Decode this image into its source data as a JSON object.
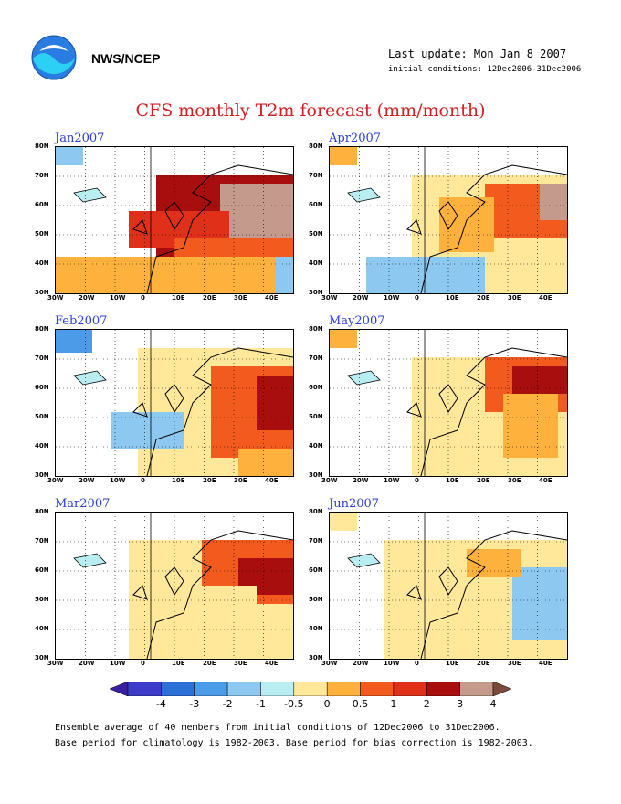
{
  "header": {
    "org": "NWS/NCEP",
    "last_update": "Last update: Mon Jan 8 2007",
    "initial_conditions": "initial conditions: 12Dec2006-31Dec2006"
  },
  "title": "CFS monthly T2m forecast (mm/month)",
  "panels": [
    {
      "month": "Jan2007"
    },
    {
      "month": "Apr2007"
    },
    {
      "month": "Feb2007"
    },
    {
      "month": "May2007"
    },
    {
      "month": "Mar2007"
    },
    {
      "month": "Jun2007"
    }
  ],
  "lat_labels": [
    "80N",
    "70N",
    "60N",
    "50N",
    "40N",
    "30N"
  ],
  "lon_labels": [
    "30W",
    "20W",
    "10W",
    "0",
    "10E",
    "20E",
    "30E",
    "40E"
  ],
  "colorbar": {
    "labels": [
      "-4",
      "-3",
      "-2",
      "-1",
      "-0.5",
      "0",
      "0.5",
      "1",
      "2",
      "3",
      "4"
    ],
    "colors": [
      "#3a1f9e",
      "#3c3cc8",
      "#2c6fd6",
      "#4b9be8",
      "#8dc8f0",
      "#b8eef2",
      "#ffe89a",
      "#ffb13d",
      "#f25a1e",
      "#e0301a",
      "#a80e0e",
      "#c49a8c",
      "#7a4a3a"
    ]
  },
  "footer": {
    "line1": "Ensemble average of 40 members from initial conditions of 12Dec2006 to 31Dec2006.",
    "line2": "Base period for climatology is 1982-2003. Base period for bias correction is 1982-2003."
  }
}
